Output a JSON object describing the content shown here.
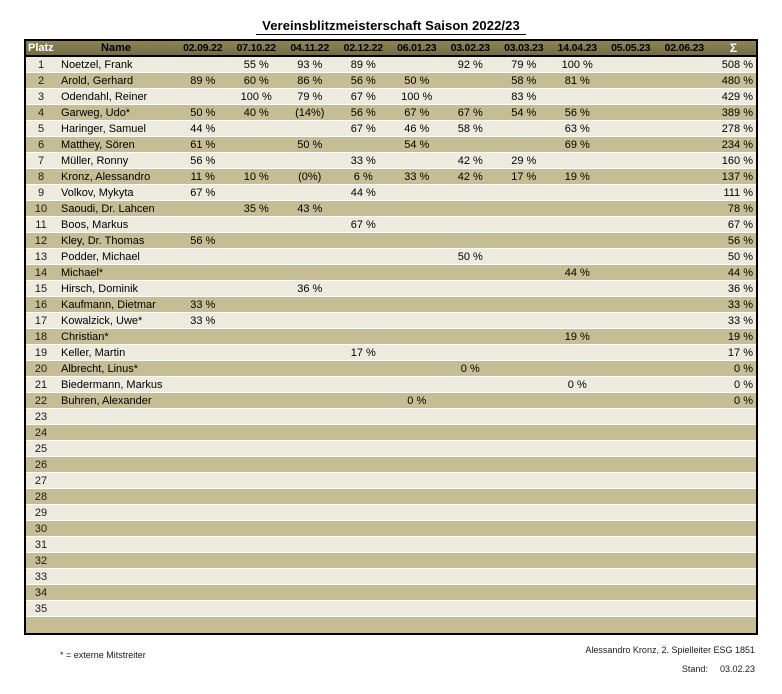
{
  "title": "Vereinsblitzmeisterschaft Saison 2022/23",
  "colors": {
    "header_bg": "#847b51",
    "row_light": "#edebdd",
    "row_dark": "#c7bd94",
    "header_text_light": "#ffffff",
    "text": "#000000",
    "border": "#000000"
  },
  "table": {
    "headers": {
      "platz": "Platz",
      "name": "Name",
      "dates": [
        "02.09.22",
        "07.10.22",
        "04.11.22",
        "02.12.22",
        "06.01.23",
        "03.02.23",
        "03.03.23",
        "14.04.23",
        "05.05.23",
        "02.06.23"
      ],
      "sum": "Σ"
    },
    "rows": [
      {
        "platz": "1",
        "name": "Noetzel, Frank",
        "results": [
          "",
          "55 %",
          "93 %",
          "89 %",
          "",
          "92 %",
          "79 %",
          "100 %",
          "",
          ""
        ],
        "sum": "508 %"
      },
      {
        "platz": "2",
        "name": "Arold, Gerhard",
        "results": [
          "89 %",
          "60 %",
          "86 %",
          "56 %",
          "50 %",
          "",
          "58 %",
          "81 %",
          "",
          ""
        ],
        "sum": "480 %"
      },
      {
        "platz": "3",
        "name": "Odendahl, Reiner",
        "results": [
          "",
          "100 %",
          "79 %",
          "67 %",
          "100 %",
          "",
          "83 %",
          "",
          "",
          ""
        ],
        "sum": "429 %"
      },
      {
        "platz": "4",
        "name": "Garweg, Udo*",
        "results": [
          "50 %",
          "40 %",
          "(14%)",
          "56 %",
          "67 %",
          "67 %",
          "54 %",
          "56 %",
          "",
          ""
        ],
        "sum": "389 %"
      },
      {
        "platz": "5",
        "name": "Haringer, Samuel",
        "results": [
          "44 %",
          "",
          "",
          "67 %",
          "46 %",
          "58 %",
          "",
          "63 %",
          "",
          ""
        ],
        "sum": "278 %"
      },
      {
        "platz": "6",
        "name": "Matthey, Sören",
        "results": [
          "61 %",
          "",
          "50 %",
          "",
          "54 %",
          "",
          "",
          "69 %",
          "",
          ""
        ],
        "sum": "234 %"
      },
      {
        "platz": "7",
        "name": "Müller, Ronny",
        "results": [
          "56 %",
          "",
          "",
          "33 %",
          "",
          "42 %",
          "29 %",
          "",
          "",
          ""
        ],
        "sum": "160 %"
      },
      {
        "platz": "8",
        "name": "Kronz, Alessandro",
        "results": [
          "11 %",
          "10 %",
          "(0%)",
          "6 %",
          "33 %",
          "42 %",
          "17 %",
          "19 %",
          "",
          ""
        ],
        "sum": "137 %"
      },
      {
        "platz": "9",
        "name": "Volkov, Mykyta",
        "results": [
          "67 %",
          "",
          "",
          "44 %",
          "",
          "",
          "",
          "",
          "",
          ""
        ],
        "sum": "111 %"
      },
      {
        "platz": "10",
        "name": "Saoudi, Dr. Lahcen",
        "results": [
          "",
          "35 %",
          "43 %",
          "",
          "",
          "",
          "",
          "",
          "",
          ""
        ],
        "sum": "78 %"
      },
      {
        "platz": "11",
        "name": "Boos, Markus",
        "results": [
          "",
          "",
          "",
          "67 %",
          "",
          "",
          "",
          "",
          "",
          ""
        ],
        "sum": "67 %"
      },
      {
        "platz": "12",
        "name": "Kley, Dr. Thomas",
        "results": [
          "56 %",
          "",
          "",
          "",
          "",
          "",
          "",
          "",
          "",
          ""
        ],
        "sum": "56 %"
      },
      {
        "platz": "13",
        "name": "Podder, Michael",
        "results": [
          "",
          "",
          "",
          "",
          "",
          "50 %",
          "",
          "",
          "",
          ""
        ],
        "sum": "50 %"
      },
      {
        "platz": "14",
        "name": "Michael*",
        "results": [
          "",
          "",
          "",
          "",
          "",
          "",
          "",
          "44 %",
          "",
          ""
        ],
        "sum": "44 %"
      },
      {
        "platz": "15",
        "name": "Hirsch, Dominik",
        "results": [
          "",
          "",
          "36 %",
          "",
          "",
          "",
          "",
          "",
          "",
          ""
        ],
        "sum": "36 %"
      },
      {
        "platz": "16",
        "name": "Kaufmann, Dietmar",
        "results": [
          "33 %",
          "",
          "",
          "",
          "",
          "",
          "",
          "",
          "",
          ""
        ],
        "sum": "33 %"
      },
      {
        "platz": "17",
        "name": "Kowalzick, Uwe*",
        "results": [
          "33 %",
          "",
          "",
          "",
          "",
          "",
          "",
          "",
          "",
          ""
        ],
        "sum": "33 %"
      },
      {
        "platz": "18",
        "name": "Christian*",
        "results": [
          "",
          "",
          "",
          "",
          "",
          "",
          "",
          "19 %",
          "",
          ""
        ],
        "sum": "19 %"
      },
      {
        "platz": "19",
        "name": "Keller, Martin",
        "results": [
          "",
          "",
          "",
          "17 %",
          "",
          "",
          "",
          "",
          "",
          ""
        ],
        "sum": "17 %"
      },
      {
        "platz": "20",
        "name": "Albrecht, Linus*",
        "results": [
          "",
          "",
          "",
          "",
          "",
          "0 %",
          "",
          "",
          "",
          ""
        ],
        "sum": "0 %"
      },
      {
        "platz": "21",
        "name": "Biedermann, Markus",
        "results": [
          "",
          "",
          "",
          "",
          "",
          "",
          "",
          "0 %",
          "",
          ""
        ],
        "sum": "0 %"
      },
      {
        "platz": "22",
        "name": "Buhren, Alexander",
        "results": [
          "",
          "",
          "",
          "",
          "0 %",
          "",
          "",
          "",
          "",
          ""
        ],
        "sum": "0 %"
      },
      {
        "platz": "23",
        "name": "",
        "results": [
          "",
          "",
          "",
          "",
          "",
          "",
          "",
          "",
          "",
          ""
        ],
        "sum": ""
      },
      {
        "platz": "24",
        "name": "",
        "results": [
          "",
          "",
          "",
          "",
          "",
          "",
          "",
          "",
          "",
          ""
        ],
        "sum": ""
      },
      {
        "platz": "25",
        "name": "",
        "results": [
          "",
          "",
          "",
          "",
          "",
          "",
          "",
          "",
          "",
          ""
        ],
        "sum": ""
      },
      {
        "platz": "26",
        "name": "",
        "results": [
          "",
          "",
          "",
          "",
          "",
          "",
          "",
          "",
          "",
          ""
        ],
        "sum": ""
      },
      {
        "platz": "27",
        "name": "",
        "results": [
          "",
          "",
          "",
          "",
          "",
          "",
          "",
          "",
          "",
          ""
        ],
        "sum": ""
      },
      {
        "platz": "28",
        "name": "",
        "results": [
          "",
          "",
          "",
          "",
          "",
          "",
          "",
          "",
          "",
          ""
        ],
        "sum": ""
      },
      {
        "platz": "29",
        "name": "",
        "results": [
          "",
          "",
          "",
          "",
          "",
          "",
          "",
          "",
          "",
          ""
        ],
        "sum": ""
      },
      {
        "platz": "30",
        "name": "",
        "results": [
          "",
          "",
          "",
          "",
          "",
          "",
          "",
          "",
          "",
          ""
        ],
        "sum": ""
      },
      {
        "platz": "31",
        "name": "",
        "results": [
          "",
          "",
          "",
          "",
          "",
          "",
          "",
          "",
          "",
          ""
        ],
        "sum": ""
      },
      {
        "platz": "32",
        "name": "",
        "results": [
          "",
          "",
          "",
          "",
          "",
          "",
          "",
          "",
          "",
          ""
        ],
        "sum": ""
      },
      {
        "platz": "33",
        "name": "",
        "results": [
          "",
          "",
          "",
          "",
          "",
          "",
          "",
          "",
          "",
          ""
        ],
        "sum": ""
      },
      {
        "platz": "34",
        "name": "",
        "results": [
          "",
          "",
          "",
          "",
          "",
          "",
          "",
          "",
          "",
          ""
        ],
        "sum": ""
      },
      {
        "platz": "35",
        "name": "",
        "results": [
          "",
          "",
          "",
          "",
          "",
          "",
          "",
          "",
          "",
          ""
        ],
        "sum": ""
      },
      {
        "platz": "",
        "name": "",
        "results": [
          "",
          "",
          "",
          "",
          "",
          "",
          "",
          "",
          "",
          ""
        ],
        "sum": ""
      }
    ]
  },
  "footer": {
    "legend": "* = externe Mitstreiter",
    "signature": "Alessandro Kronz, 2. Spielleiter ESG 1851",
    "stand_label": "Stand:",
    "stand_date": "03.02.23"
  }
}
